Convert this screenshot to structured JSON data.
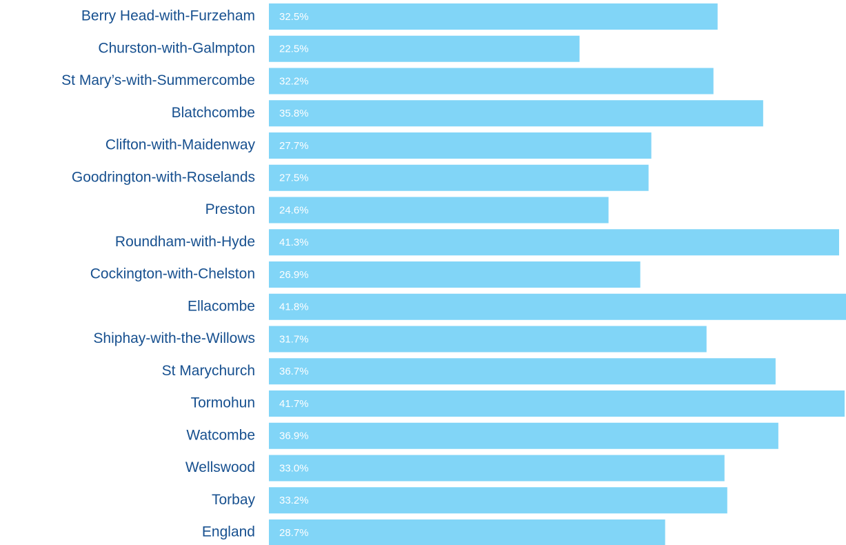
{
  "chart_data": {
    "type": "bar",
    "orientation": "horizontal",
    "categories": [
      "Berry Head-with-Furzeham",
      "Churston-with-Galmpton",
      "St Mary’s-with-Summercombe",
      "Blatchcombe",
      "Clifton-with-Maidenway",
      "Goodrington-with-Roselands",
      "Preston",
      "Roundham-with-Hyde",
      "Cockington-with-Chelston",
      "Ellacombe",
      "Shiphay-with-the-Willows",
      "St Marychurch",
      "Tormohun",
      "Watcombe",
      "Wellswood",
      "Torbay",
      "England"
    ],
    "values": [
      32.5,
      22.5,
      32.2,
      35.8,
      27.7,
      27.5,
      24.6,
      41.3,
      26.9,
      41.8,
      31.7,
      36.7,
      41.7,
      36.9,
      33.0,
      33.2,
      28.7
    ],
    "value_labels": [
      "32.5%",
      "22.5%",
      "32.2%",
      "35.8%",
      "27.7%",
      "27.5%",
      "24.6%",
      "41.3%",
      "26.9%",
      "41.8%",
      "31.7%",
      "36.7%",
      "41.7%",
      "36.9%",
      "33.0%",
      "33.2%",
      "28.7%"
    ],
    "color": "#81d5f7"
  }
}
